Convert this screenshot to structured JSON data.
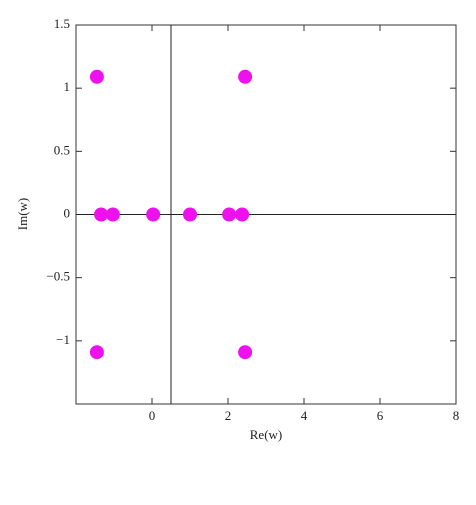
{
  "chart_data": {
    "type": "scatter",
    "x_label": "Re(w)",
    "y_label": "Im(w)",
    "series": [
      {
        "color": "#ee10ee",
        "x": [
          -1.45,
          2.45,
          -1.34,
          -1.03,
          0.03,
          1.0,
          2.03,
          2.37,
          -1.45,
          2.45
        ],
        "values": [
          1.09,
          1.09,
          0,
          0,
          0,
          0,
          0,
          0,
          -1.09,
          -1.09
        ]
      }
    ],
    "xlim": [
      -2,
      8
    ],
    "ylim": [
      -1.5,
      1.5
    ],
    "xticks": [
      0,
      2,
      4,
      6,
      8
    ],
    "yticks": [
      {
        "value": -1,
        "label": "−1"
      },
      {
        "value": -0.5,
        "label": "−0.5"
      },
      0,
      0.5,
      1,
      1.5
    ],
    "axis_origin": [
      0.5,
      0
    ]
  }
}
